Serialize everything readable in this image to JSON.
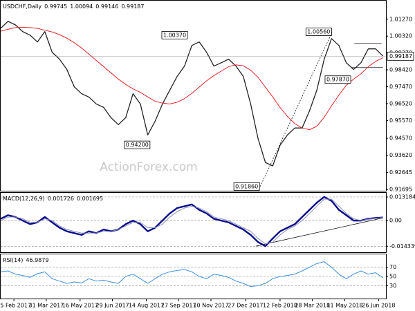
{
  "chart_data": [
    {
      "type": "line",
      "title": "USDCHF,Daily",
      "ohlc": [
        0.99745,
        1.00094,
        0.99146,
        0.99187
      ],
      "watermark": "ActionForex.com",
      "x": [
        "2017-01-28",
        "2017-02-07",
        "2017-02-17",
        "2017-02-27",
        "2017-03-09",
        "2017-03-19",
        "2017-03-29",
        "2017-04-08",
        "2017-04-18",
        "2017-04-28",
        "2017-05-08",
        "2017-05-18",
        "2017-05-28",
        "2017-06-07",
        "2017-06-17",
        "2017-06-27",
        "2017-07-07",
        "2017-07-17",
        "2017-07-27",
        "2017-08-06",
        "2017-08-16",
        "2017-08-26",
        "2017-09-05",
        "2017-09-15",
        "2017-09-25",
        "2017-10-05",
        "2017-10-15",
        "2017-10-25",
        "2017-11-04",
        "2017-11-14",
        "2017-11-24",
        "2017-12-04",
        "2017-12-14",
        "2017-12-24",
        "2018-01-03",
        "2018-01-13",
        "2018-01-23",
        "2018-02-02",
        "2018-02-12",
        "2018-02-22",
        "2018-03-04",
        "2018-03-14",
        "2018-03-24",
        "2018-04-03",
        "2018-04-13",
        "2018-04-23",
        "2018-05-03",
        "2018-05-13",
        "2018-05-23",
        "2018-06-02",
        "2018-06-12",
        "2018-06-22",
        "2018-07-02"
      ],
      "xlim": [
        "2017-01-28",
        "2018-07-06"
      ],
      "xticks": [
        {
          "value": "2017-02-15",
          "label": "15 Feb 2017"
        },
        {
          "value": "2017-03-31",
          "label": "31 Mar 2017"
        },
        {
          "value": "2017-05-16",
          "label": "16 May 2017"
        },
        {
          "value": "2017-06-29",
          "label": "29 Jun 2017"
        },
        {
          "value": "2017-08-14",
          "label": "14 Aug 2017"
        },
        {
          "value": "2017-09-27",
          "label": "27 Sep 2017"
        },
        {
          "value": "2017-11-10",
          "label": "10 Nov 2017"
        },
        {
          "value": "2017-12-27",
          "label": "27 Dec 2017"
        },
        {
          "value": "2018-02-12",
          "label": "12 Feb 2018"
        },
        {
          "value": "2018-03-28",
          "label": "28 Mar 2018"
        },
        {
          "value": "2018-05-11",
          "label": "11 May 2018"
        },
        {
          "value": "2018-06-26",
          "label": "26 Jun 2018"
        }
      ],
      "series": [
        {
          "color": "#222222",
          "values": [
            1.0076,
            1.0115,
            1.0095,
            1.0057,
            1.0037,
            0.9999,
            1.0057,
            0.9941,
            0.9902,
            0.9844,
            0.9747,
            0.9708,
            0.9689,
            0.965,
            0.9631,
            0.9573,
            0.9534,
            0.9573,
            0.9708,
            0.965,
            0.9476,
            0.9553,
            0.965,
            0.9728,
            0.9805,
            0.9863,
            0.9979,
            0.9999,
            0.9941,
            0.9863,
            0.9882,
            0.9902,
            0.9863,
            0.9805,
            0.965,
            0.9456,
            0.9321,
            0.9302,
            0.9418,
            0.9476,
            0.9515,
            0.9515,
            0.9611,
            0.9728,
            0.9902,
            1.0018,
            0.9979,
            0.9882,
            0.9844,
            0.9882,
            0.996,
            0.996,
            0.99187
          ]
        },
        {
          "color": "#e8262d",
          "values": [
            1.006,
            1.007,
            1.008,
            1.0082,
            1.008,
            1.0075,
            1.0065,
            1.0055,
            1.004,
            1.002,
            0.9995,
            0.9965,
            0.993,
            0.9895,
            0.986,
            0.9825,
            0.979,
            0.976,
            0.9735,
            0.9715,
            0.969,
            0.9665,
            0.9655,
            0.965,
            0.966,
            0.968,
            0.971,
            0.9745,
            0.978,
            0.981,
            0.9835,
            0.986,
            0.987,
            0.9865,
            0.984,
            0.98,
            0.9745,
            0.969,
            0.963,
            0.958,
            0.954,
            0.9515,
            0.9505,
            0.9525,
            0.9575,
            0.964,
            0.97,
            0.9755,
            0.979,
            0.982,
            0.986,
            0.989,
            0.991
          ]
        }
      ],
      "ylim": [
        0.9162,
        1.0231
      ],
      "yticks": [
        {
          "value": 1.0127,
          "label": "1.01270"
        },
        {
          "value": 1.0032,
          "label": "1.00320"
        },
        {
          "value": 0.9937,
          "label": "0.99370"
        },
        {
          "value": 0.9842,
          "label": "0.98420"
        },
        {
          "value": 0.9747,
          "label": "0.97470"
        },
        {
          "value": 0.9652,
          "label": "0.96520"
        },
        {
          "value": 0.9557,
          "label": "0.95570"
        },
        {
          "value": 0.9457,
          "label": "0.94570"
        },
        {
          "value": 0.9362,
          "label": "0.93620"
        },
        {
          "value": 0.92645,
          "label": "0.92645"
        },
        {
          "value": 0.91695,
          "label": "0.91695"
        }
      ],
      "annotations": [
        {
          "x": "2017-08-20",
          "value": 0.942,
          "label": "0.94200"
        },
        {
          "x": "2017-10-10",
          "value": 1.0037,
          "label": "1.00370"
        },
        {
          "x": "2018-01-16",
          "value": 0.9186,
          "label": "0.91860"
        },
        {
          "x": "2018-04-24",
          "value": 1.0056,
          "label": "1.00560"
        },
        {
          "x": "2018-05-20",
          "value": 0.9787,
          "label": "0.97870"
        }
      ],
      "trendlines": [
        {
          "x": [
            "2018-01-16",
            "2018-04-24"
          ],
          "y": [
            0.9186,
            1.0056
          ],
          "dashed": true
        },
        {
          "x": [
            "2018-05-24",
            "2018-06-30"
          ],
          "y": [
            0.9991,
            0.9991
          ],
          "dashed": false
        },
        {
          "x": [
            "2018-05-20",
            "2018-07-02"
          ],
          "y": [
            0.9855,
            0.9855
          ],
          "dashed": false
        }
      ]
    },
    {
      "type": "line",
      "title": "MACD(12,26,9)",
      "series": [
        {
          "color": "#0a0a8c",
          "values": [
            0.001,
            0.003,
            0.002,
            0.0,
            -0.002,
            -0.001,
            0.002,
            -0.001,
            -0.004,
            -0.006,
            -0.007,
            -0.008,
            -0.006,
            -0.007,
            -0.005,
            -0.006,
            -0.005,
            -0.002,
            0.0,
            -0.002,
            -0.006,
            -0.004,
            0.0,
            0.004,
            0.007,
            0.008,
            0.009,
            0.006,
            0.004,
            0.001,
            0.0,
            -0.001,
            -0.003,
            -0.005,
            -0.008,
            -0.012,
            -0.0143,
            -0.01,
            -0.006,
            -0.004,
            -0.002,
            0.002,
            0.006,
            0.01,
            0.0132,
            0.011,
            0.006,
            0.003,
            0.0,
            0.0,
            0.001,
            0.0015,
            0.001726
          ]
        },
        {
          "color": "#8a8fb8",
          "values": [
            0.0,
            0.002,
            0.002,
            0.001,
            -0.001,
            -0.001,
            0.001,
            0.0,
            -0.003,
            -0.005,
            -0.006,
            -0.007,
            -0.007,
            -0.007,
            -0.006,
            -0.006,
            -0.005,
            -0.003,
            -0.001,
            -0.001,
            -0.004,
            -0.004,
            -0.002,
            0.002,
            0.005,
            0.007,
            0.008,
            0.007,
            0.005,
            0.002,
            0.001,
            0.0,
            -0.002,
            -0.004,
            -0.006,
            -0.01,
            -0.013,
            -0.012,
            -0.008,
            -0.005,
            -0.003,
            0.0,
            0.004,
            0.008,
            0.012,
            0.012,
            0.008,
            0.004,
            0.001,
            0.0,
            0.0008,
            0.0013,
            0.001695
          ]
        }
      ],
      "ylim": [
        -0.0177,
        0.0155
      ],
      "yticks": [
        0.013184,
        {
          "value": 0,
          "label": "0.00"
        },
        -0.014339
      ],
      "grid": true,
      "trendlines": [
        {
          "x": [
            "2018-01-10",
            "2018-07-02"
          ],
          "y": [
            -0.0143,
            0.0015
          ],
          "dashed": false
        }
      ]
    },
    {
      "type": "line",
      "title": "RSI(14)",
      "series": [
        {
          "color": "#3a8fe0",
          "values": [
            60,
            62,
            55,
            52,
            48,
            56,
            60,
            45,
            40,
            35,
            38,
            36,
            45,
            40,
            42,
            38,
            35,
            50,
            55,
            45,
            35,
            45,
            55,
            60,
            63,
            65,
            60,
            50,
            45,
            55,
            52,
            48,
            40,
            35,
            28,
            30,
            35,
            45,
            50,
            52,
            55,
            62,
            70,
            78,
            82,
            70,
            55,
            45,
            55,
            62,
            55,
            58,
            46.9879
          ]
        }
      ],
      "ylim": [
        2,
        98
      ],
      "yticks": [
        70,
        50,
        30
      ],
      "grid": true
    }
  ]
}
